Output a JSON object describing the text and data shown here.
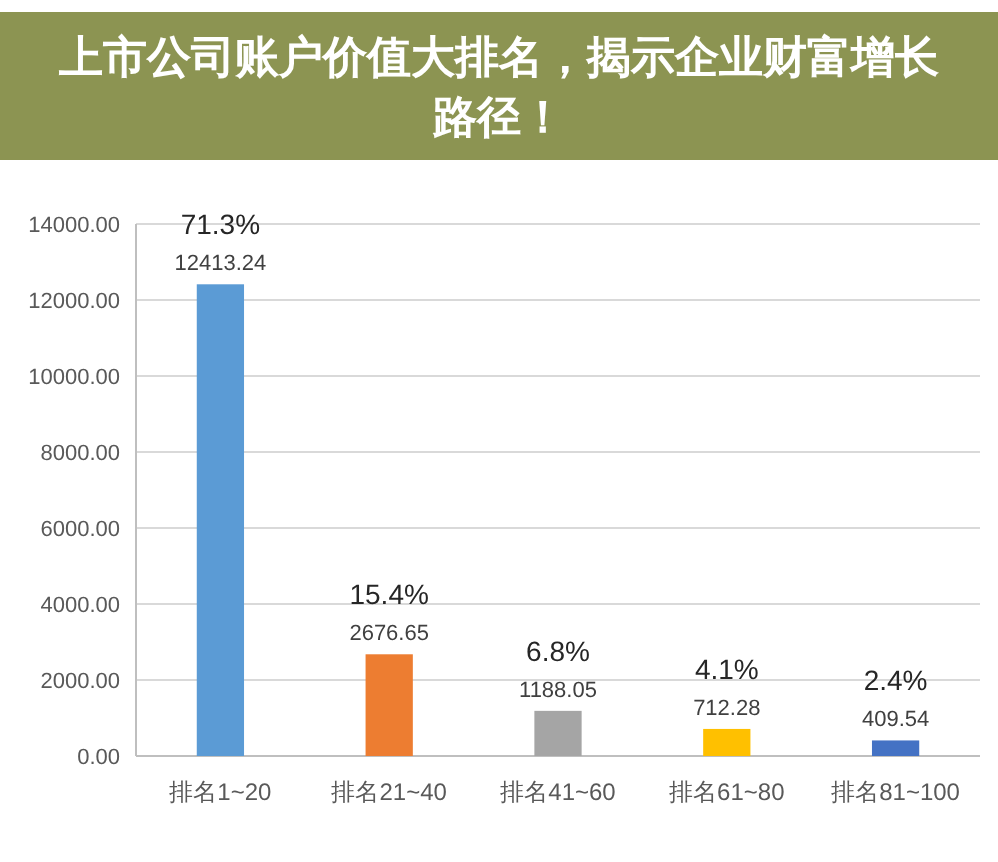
{
  "chart_data": {
    "type": "bar",
    "title": "上市公司账户价值大排名，揭示企业财富增长路径！",
    "categories": [
      "排名1~20",
      "排名21~40",
      "排名41~60",
      "排名61~80",
      "排名81~100"
    ],
    "values": [
      12413.24,
      2676.65,
      1188.05,
      712.28,
      409.54
    ],
    "colors": [
      "#5b9bd5",
      "#ed7d31",
      "#a5a5a5",
      "#ffc000",
      "#4472c4"
    ],
    "data_labels": true,
    "annotations": [
      {
        "text": "71.3%",
        "x": "排名1~20",
        "y": 12413.24
      },
      {
        "text": "15.4%",
        "x": "排名21~40",
        "y": 2676.65
      },
      {
        "text": "6.8%",
        "x": "排名41~60",
        "y": 1188.05
      },
      {
        "text": "4.1%",
        "x": "排名61~80",
        "y": 712.28
      },
      {
        "text": "2.4%",
        "x": "排名81~100",
        "y": 409.54
      }
    ],
    "ylim": [
      0,
      14000
    ],
    "yticks": [
      {
        "value": 0,
        "label": "0.00"
      },
      {
        "value": 2000,
        "label": "2000.00"
      },
      {
        "value": 4000,
        "label": "4000.00"
      },
      {
        "value": 6000,
        "label": "6000.00"
      },
      {
        "value": 8000,
        "label": "8000.00"
      },
      {
        "value": 10000,
        "label": "10000.00"
      },
      {
        "value": 12000,
        "label": "12000.00"
      },
      {
        "value": 14000,
        "label": "14000.00"
      }
    ],
    "grid": "y"
  }
}
